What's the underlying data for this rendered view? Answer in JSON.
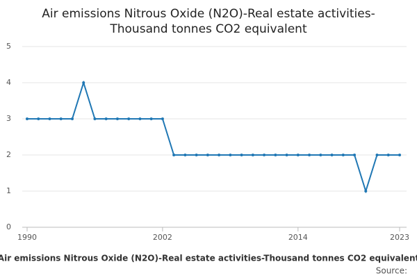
{
  "chart_data": {
    "type": "line",
    "title": "Air emissions Nitrous Oxide (N2O)-Real estate activities-",
    "subtitle": "Thousand tonnes CO2 equivalent",
    "x": [
      1990,
      1991,
      1992,
      1993,
      1994,
      1995,
      1996,
      1997,
      1998,
      1999,
      2000,
      2001,
      2002,
      2003,
      2004,
      2005,
      2006,
      2007,
      2008,
      2009,
      2010,
      2011,
      2012,
      2013,
      2014,
      2015,
      2016,
      2017,
      2018,
      2019,
      2020,
      2021,
      2022,
      2023
    ],
    "series": [
      {
        "name": "Air emissions Nitrous Oxide (N2O)-Real estate activities-Thousand tonnes CO2 equivalent",
        "color": "#1f77b4",
        "values": [
          3,
          3,
          3,
          3,
          3,
          4,
          3,
          3,
          3,
          3,
          3,
          3,
          3,
          2,
          2,
          2,
          2,
          2,
          2,
          2,
          2,
          2,
          2,
          2,
          2,
          2,
          2,
          2,
          2,
          2,
          1,
          2,
          2,
          2
        ]
      }
    ],
    "xlim": [
      1990,
      2023
    ],
    "xticks": [
      1990,
      2002,
      2014,
      2023
    ],
    "ylim": [
      0,
      5
    ],
    "yticks": [
      0,
      1,
      2,
      3,
      4,
      5
    ],
    "grid": true,
    "source": "Source:"
  }
}
